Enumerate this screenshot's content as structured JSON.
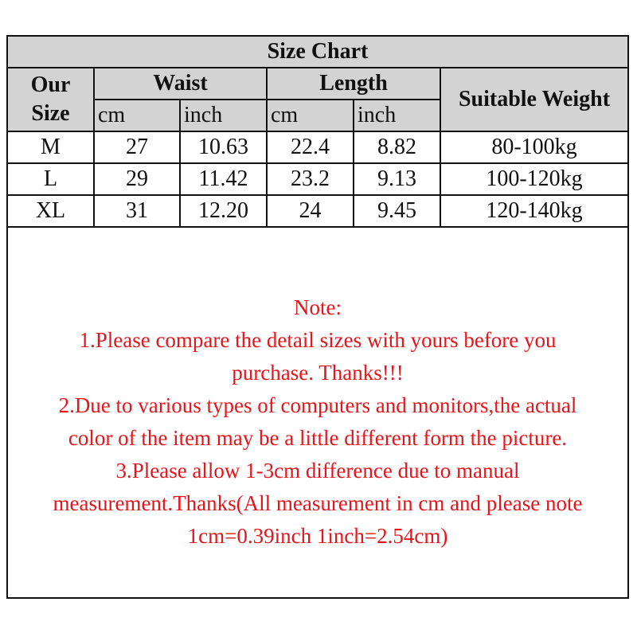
{
  "title": "Size Chart",
  "headers": {
    "size": [
      "Our",
      "Size"
    ],
    "waist": "Waist",
    "length": "Length",
    "weight": "Suitable Weight",
    "cm": "cm",
    "inch": "inch"
  },
  "rows": [
    {
      "size": "M",
      "waist_cm": "27",
      "waist_inch": "10.63",
      "length_cm": "22.4",
      "length_inch": "8.82",
      "weight": "80-100kg"
    },
    {
      "size": "L",
      "waist_cm": "29",
      "waist_inch": "11.42",
      "length_cm": "23.2",
      "length_inch": "9.13",
      "weight": "100-120kg"
    },
    {
      "size": "XL",
      "waist_cm": "31",
      "waist_inch": "12.20",
      "length_cm": "24",
      "length_inch": "9.45",
      "weight": "120-140kg"
    }
  ],
  "note": [
    "Note:",
    "1.Please compare the detail sizes with yours before you",
    "purchase. Thanks!!!",
    "2.Due to various types of computers and monitors,the actual",
    "color of the item may be a little different form the picture.",
    "3.Please allow 1-3cm difference due to manual",
    "measurement.Thanks(All measurement in cm and please note",
    "1cm=0.39inch 1inch=2.54cm)"
  ],
  "colors": {
    "header_bg": "#d4d3d3",
    "note": "#e8141a"
  }
}
